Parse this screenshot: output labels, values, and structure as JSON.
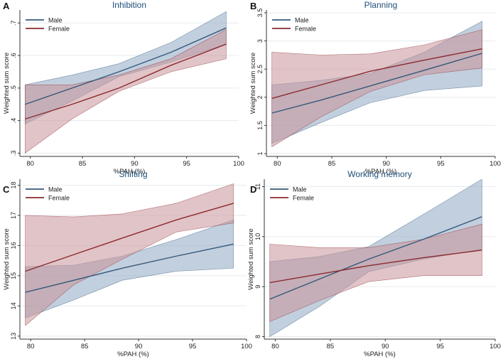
{
  "colors": {
    "male": "#34587a",
    "female": "#8b2a2f",
    "male_fill": "#8fa7c2",
    "female_fill": "#c99499",
    "overlap_fill": "#8a7f95",
    "grid": "#e6eaee"
  },
  "chart_data": [
    {
      "panel_label": "A",
      "type": "line",
      "title": "Inhibition",
      "xlabel": "%PAH (%)",
      "ylabel": "Weighted sum score",
      "xlim": [
        79,
        100
      ],
      "ylim": [
        0.29,
        0.74
      ],
      "xticks": [
        80,
        85,
        90,
        95,
        100
      ],
      "yticks": [
        0.3,
        0.4,
        0.5,
        0.6,
        0.7
      ],
      "ytick_labels": [
        ".3",
        ".4",
        ".5",
        ".6",
        ".7"
      ],
      "x": [
        79.5,
        84,
        88.5,
        93.5,
        98.8
      ],
      "series": [
        {
          "name": "Male",
          "values": [
            0.45,
            0.5,
            0.55,
            0.61,
            0.685
          ],
          "lower": [
            0.39,
            0.46,
            0.535,
            0.58,
            0.635
          ],
          "upper": [
            0.51,
            0.54,
            0.575,
            0.64,
            0.735
          ]
        },
        {
          "name": "Female",
          "values": [
            0.405,
            0.45,
            0.5,
            0.57,
            0.635
          ],
          "lower": [
            0.3,
            0.405,
            0.49,
            0.55,
            0.59
          ],
          "upper": [
            0.51,
            0.51,
            0.54,
            0.59,
            0.68
          ]
        }
      ],
      "legend": [
        "Male",
        "Female"
      ]
    },
    {
      "panel_label": "B",
      "type": "line",
      "title": "Planning",
      "xlabel": "%PAH (%)",
      "ylabel": "Weighted sum score",
      "xlim": [
        79,
        100
      ],
      "ylim": [
        0.95,
        3.55
      ],
      "xticks": [
        80,
        85,
        90,
        95,
        100
      ],
      "yticks": [
        1,
        1.5,
        2,
        2.5,
        3,
        3.5
      ],
      "ytick_labels": [
        "1",
        "1.5",
        "2",
        "2.5",
        "3",
        "3.5"
      ],
      "x": [
        79.5,
        84,
        88.5,
        93.5,
        98.8
      ],
      "series": [
        {
          "name": "Male",
          "values": [
            1.72,
            1.95,
            2.2,
            2.48,
            2.78
          ],
          "lower": [
            1.18,
            1.55,
            1.9,
            2.12,
            2.2
          ],
          "upper": [
            2.22,
            2.3,
            2.42,
            2.8,
            3.35
          ]
        },
        {
          "name": "Female",
          "values": [
            1.98,
            2.22,
            2.46,
            2.66,
            2.86
          ],
          "lower": [
            1.12,
            1.65,
            2.1,
            2.4,
            2.52
          ],
          "upper": [
            2.8,
            2.75,
            2.77,
            2.93,
            3.2
          ]
        }
      ],
      "legend": [
        "Male",
        "Female"
      ]
    },
    {
      "panel_label": "C",
      "type": "line",
      "title": "Shifting",
      "xlabel": "%PAH (%)",
      "ylabel": "Weighted sum score",
      "xlim": [
        79,
        100
      ],
      "ylim": [
        12.9,
        18.2
      ],
      "xticks": [
        80,
        85,
        90,
        95,
        100
      ],
      "yticks": [
        13,
        14,
        15,
        16,
        17,
        18
      ],
      "ytick_labels": [
        "13",
        "14",
        "15",
        "16",
        "17",
        "18"
      ],
      "x": [
        79.5,
        84,
        88.5,
        93.5,
        98.8
      ],
      "series": [
        {
          "name": "Male",
          "values": [
            14.45,
            14.85,
            15.25,
            15.65,
            16.05
          ],
          "lower": [
            13.6,
            14.2,
            14.85,
            15.15,
            15.25
          ],
          "upper": [
            15.3,
            15.35,
            15.65,
            16.2,
            16.85
          ]
        },
        {
          "name": "Female",
          "values": [
            15.15,
            15.7,
            16.25,
            16.85,
            17.4
          ],
          "lower": [
            13.35,
            14.7,
            15.55,
            16.45,
            16.75
          ],
          "upper": [
            17.0,
            16.95,
            17.05,
            17.4,
            18.05
          ]
        }
      ],
      "legend": [
        "Male",
        "Female"
      ]
    },
    {
      "panel_label": "D",
      "type": "line",
      "title": "Working memory",
      "xlabel": "%PAH (%)",
      "ylabel": "Weighted sum score",
      "xlim": [
        79,
        100
      ],
      "ylim": [
        7.95,
        11.15
      ],
      "xticks": [
        80,
        85,
        90,
        95,
        100
      ],
      "yticks": [
        8,
        9,
        10,
        11
      ],
      "ytick_labels": [
        "8",
        "9",
        "10",
        "11"
      ],
      "x": [
        79.5,
        84,
        88.5,
        93.5,
        98.8
      ],
      "series": [
        {
          "name": "Male",
          "values": [
            8.75,
            9.15,
            9.55,
            9.95,
            10.4
          ],
          "lower": [
            8.0,
            8.6,
            9.3,
            9.55,
            9.75
          ],
          "upper": [
            9.5,
            9.6,
            9.8,
            10.45,
            11.15
          ]
        },
        {
          "name": "Female",
          "values": [
            9.08,
            9.25,
            9.42,
            9.58,
            9.73
          ],
          "lower": [
            8.3,
            8.72,
            9.1,
            9.22,
            9.22
          ],
          "upper": [
            9.85,
            9.78,
            9.78,
            9.95,
            10.25
          ]
        }
      ],
      "legend": [
        "Male",
        "Female"
      ]
    }
  ]
}
